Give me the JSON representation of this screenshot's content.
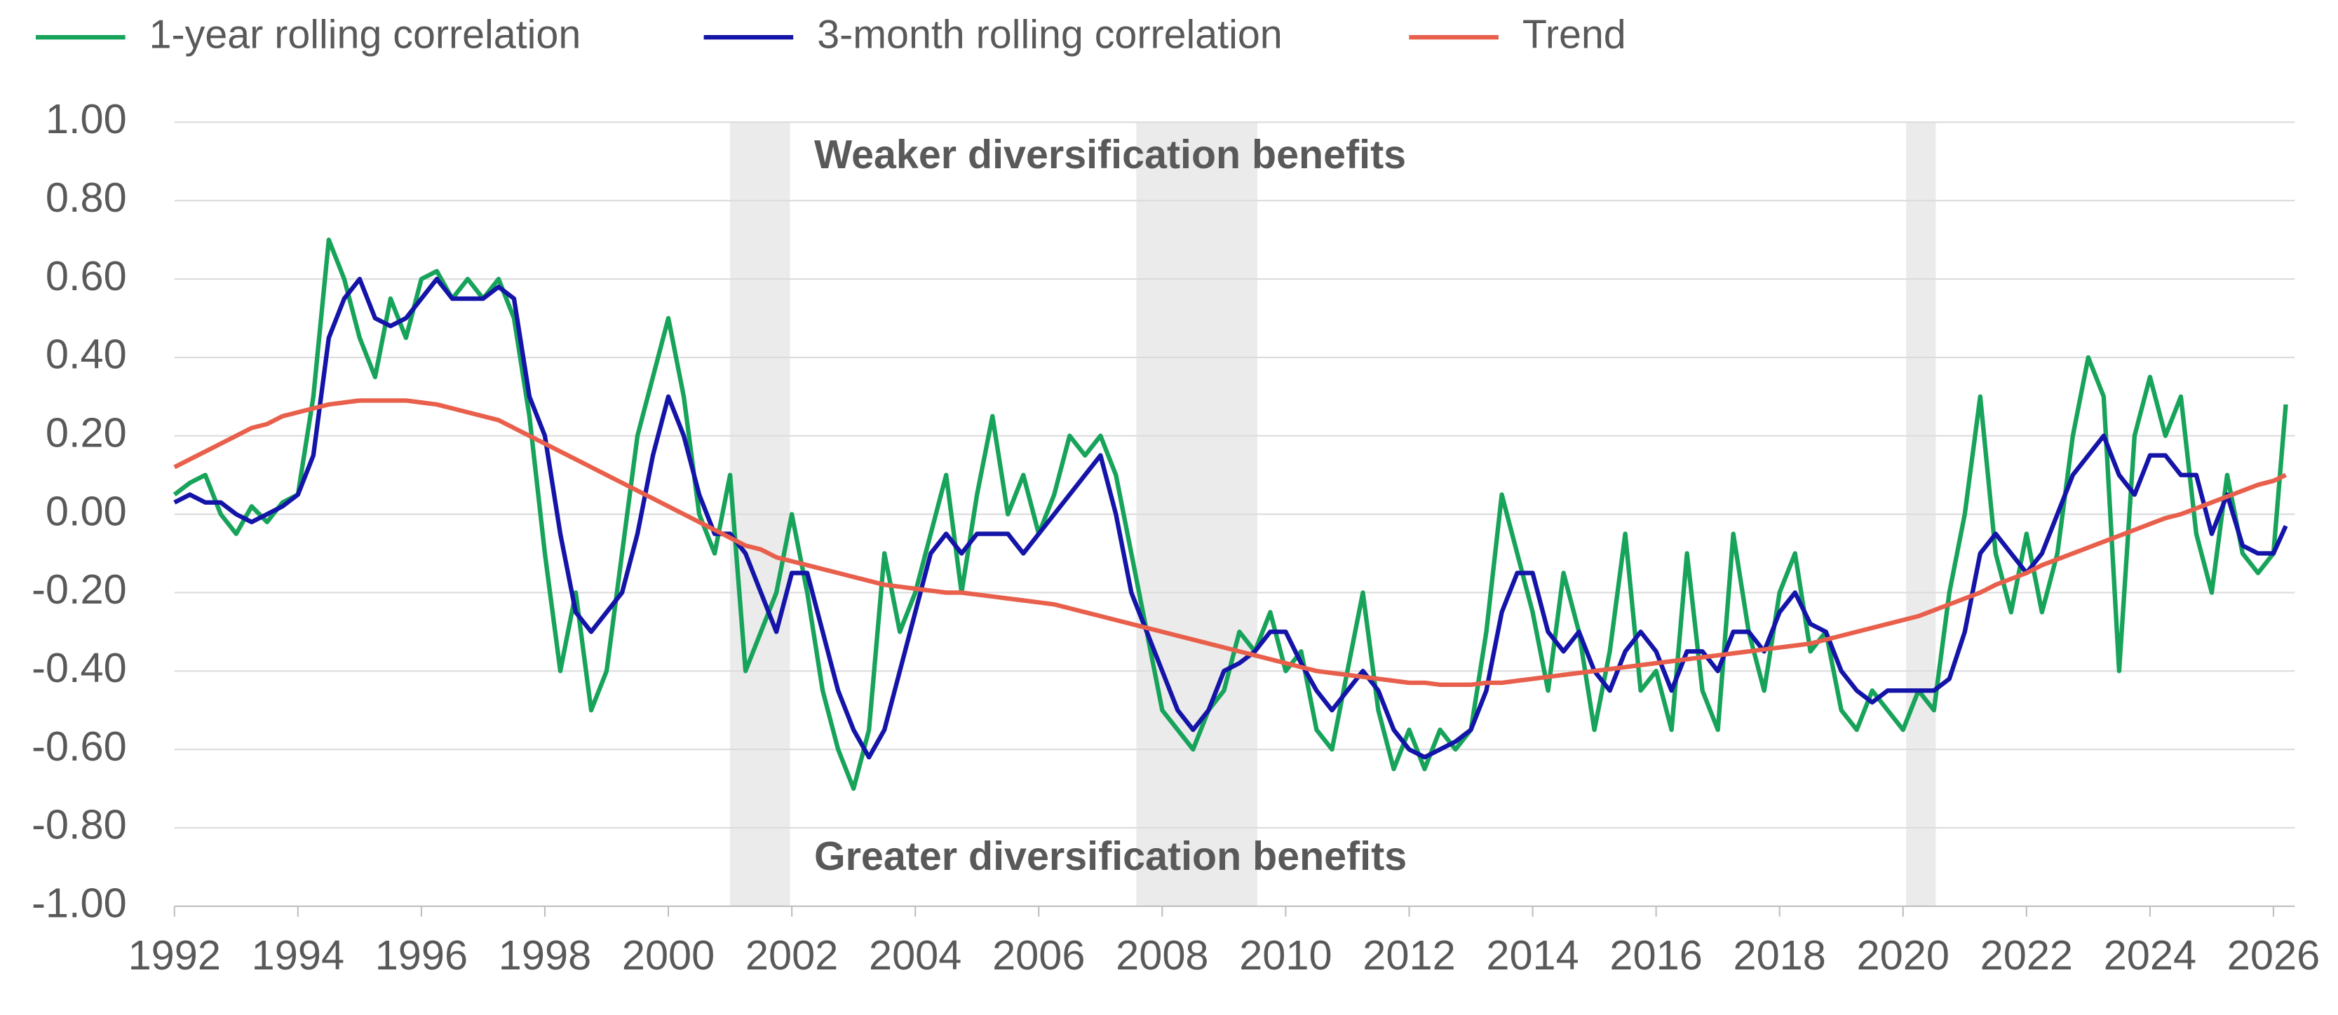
{
  "chart_data": {
    "type": "line",
    "legend": "top-left",
    "grid": true,
    "annotations": [
      {
        "text": "Weaker diversification benefits",
        "y": 0.91
      },
      {
        "text": "Greater diversification benefits",
        "y": -0.88
      }
    ],
    "shaded": [
      [
        2001.0,
        2001.97
      ],
      [
        2007.58,
        2009.54
      ],
      [
        2020.05,
        2020.53
      ]
    ],
    "xlim": [
      1992,
      2026.2
    ],
    "xticks": [
      1992,
      1994,
      1996,
      1998,
      2000,
      2002,
      2004,
      2006,
      2008,
      2010,
      2012,
      2014,
      2016,
      2018,
      2020,
      2022,
      2024,
      2026
    ],
    "ylim": [
      -1,
      1
    ],
    "yticks": [
      {
        "value": -1,
        "label": "-1.00"
      },
      {
        "value": -0.8,
        "label": "-0.80"
      },
      {
        "value": -0.6,
        "label": "-0.60"
      },
      {
        "value": -0.4,
        "label": "-0.40"
      },
      {
        "value": -0.2,
        "label": "-0.20"
      },
      {
        "value": 0,
        "label": "0.00"
      },
      {
        "value": 0.2,
        "label": "0.20"
      },
      {
        "value": 0.4,
        "label": "0.40"
      },
      {
        "value": 0.6,
        "label": "0.60"
      },
      {
        "value": 0.8,
        "label": "0.80"
      },
      {
        "value": 1,
        "label": "1.00"
      }
    ],
    "x": [
      1992,
      1992.25,
      1992.5,
      1992.75,
      1993,
      1993.25,
      1993.5,
      1993.75,
      1994,
      1994.25,
      1994.5,
      1994.75,
      1995,
      1995.25,
      1995.5,
      1995.75,
      1996,
      1996.25,
      1996.5,
      1996.75,
      1997,
      1997.25,
      1997.5,
      1997.75,
      1998,
      1998.25,
      1998.5,
      1998.75,
      1999,
      1999.25,
      1999.5,
      1999.75,
      2000,
      2000.25,
      2000.5,
      2000.75,
      2001,
      2001.25,
      2001.5,
      2001.75,
      2002,
      2002.25,
      2002.5,
      2002.75,
      2003,
      2003.25,
      2003.5,
      2003.75,
      2004,
      2004.25,
      2004.5,
      2004.75,
      2005,
      2005.25,
      2005.5,
      2005.75,
      2006,
      2006.25,
      2006.5,
      2006.75,
      2007,
      2007.25,
      2007.5,
      2007.75,
      2008,
      2008.25,
      2008.5,
      2008.75,
      2009,
      2009.25,
      2009.5,
      2009.75,
      2010,
      2010.25,
      2010.5,
      2010.75,
      2011,
      2011.25,
      2011.5,
      2011.75,
      2012,
      2012.25,
      2012.5,
      2012.75,
      2013,
      2013.25,
      2013.5,
      2013.75,
      2014,
      2014.25,
      2014.5,
      2014.75,
      2015,
      2015.25,
      2015.5,
      2015.75,
      2016,
      2016.25,
      2016.5,
      2016.75,
      2017,
      2017.25,
      2017.5,
      2017.75,
      2018,
      2018.25,
      2018.5,
      2018.75,
      2019,
      2019.25,
      2019.5,
      2019.75,
      2020,
      2020.25,
      2020.5,
      2020.75,
      2021,
      2021.25,
      2021.5,
      2021.75,
      2022,
      2022.25,
      2022.5,
      2022.75,
      2023,
      2023.25,
      2023.5,
      2023.75,
      2024,
      2024.25,
      2024.5,
      2024.75,
      2025,
      2025.25,
      2025.5,
      2025.75,
      2026,
      2026.2
    ],
    "series": [
      {
        "name": "1-year rolling correlation",
        "color": "#17a35a",
        "values": [
          0.05,
          0.08,
          0.1,
          0.0,
          -0.05,
          0.02,
          -0.02,
          0.03,
          0.05,
          0.3,
          0.7,
          0.6,
          0.45,
          0.35,
          0.55,
          0.45,
          0.6,
          0.62,
          0.55,
          0.6,
          0.55,
          0.6,
          0.5,
          0.25,
          -0.1,
          -0.4,
          -0.2,
          -0.5,
          -0.4,
          -0.1,
          0.2,
          0.35,
          0.5,
          0.3,
          0.0,
          -0.1,
          0.1,
          -0.4,
          -0.3,
          -0.2,
          0.0,
          -0.2,
          -0.45,
          -0.6,
          -0.7,
          -0.55,
          -0.1,
          -0.3,
          -0.2,
          -0.05,
          0.1,
          -0.2,
          0.05,
          0.25,
          0.0,
          0.1,
          -0.05,
          0.05,
          0.2,
          0.15,
          0.2,
          0.1,
          -0.1,
          -0.3,
          -0.5,
          -0.55,
          -0.6,
          -0.5,
          -0.45,
          -0.3,
          -0.35,
          -0.25,
          -0.4,
          -0.35,
          -0.55,
          -0.6,
          -0.4,
          -0.2,
          -0.5,
          -0.65,
          -0.55,
          -0.65,
          -0.55,
          -0.6,
          -0.55,
          -0.3,
          0.05,
          -0.1,
          -0.25,
          -0.45,
          -0.15,
          -0.3,
          -0.55,
          -0.35,
          -0.05,
          -0.45,
          -0.4,
          -0.55,
          -0.1,
          -0.45,
          -0.55,
          -0.05,
          -0.3,
          -0.45,
          -0.2,
          -0.1,
          -0.35,
          -0.3,
          -0.5,
          -0.55,
          -0.45,
          -0.5,
          -0.55,
          -0.45,
          -0.5,
          -0.2,
          0.0,
          0.3,
          -0.1,
          -0.25,
          -0.05,
          -0.25,
          -0.1,
          0.2,
          0.4,
          0.3,
          -0.4,
          0.2,
          0.35,
          0.2,
          0.3,
          -0.05,
          -0.2,
          0.1,
          -0.1,
          -0.15,
          -0.1,
          0.28
        ]
      },
      {
        "name": "3-month rolling correlation",
        "color": "#1414a8",
        "values": [
          0.03,
          0.05,
          0.03,
          0.03,
          0.0,
          -0.02,
          0.0,
          0.02,
          0.05,
          0.15,
          0.45,
          0.55,
          0.6,
          0.5,
          0.48,
          0.5,
          0.55,
          0.6,
          0.55,
          0.55,
          0.55,
          0.58,
          0.55,
          0.3,
          0.2,
          -0.05,
          -0.25,
          -0.3,
          -0.25,
          -0.2,
          -0.05,
          0.15,
          0.3,
          0.2,
          0.05,
          -0.05,
          -0.05,
          -0.1,
          -0.2,
          -0.3,
          -0.15,
          -0.15,
          -0.3,
          -0.45,
          -0.55,
          -0.62,
          -0.55,
          -0.4,
          -0.25,
          -0.1,
          -0.05,
          -0.1,
          -0.05,
          -0.05,
          -0.05,
          -0.1,
          -0.05,
          0.0,
          0.05,
          0.1,
          0.15,
          0.0,
          -0.2,
          -0.3,
          -0.4,
          -0.5,
          -0.55,
          -0.5,
          -0.4,
          -0.38,
          -0.35,
          -0.3,
          -0.3,
          -0.38,
          -0.45,
          -0.5,
          -0.45,
          -0.4,
          -0.45,
          -0.55,
          -0.6,
          -0.62,
          -0.6,
          -0.58,
          -0.55,
          -0.45,
          -0.25,
          -0.15,
          -0.15,
          -0.3,
          -0.35,
          -0.3,
          -0.4,
          -0.45,
          -0.35,
          -0.3,
          -0.35,
          -0.45,
          -0.35,
          -0.35,
          -0.4,
          -0.3,
          -0.3,
          -0.35,
          -0.25,
          -0.2,
          -0.28,
          -0.3,
          -0.4,
          -0.45,
          -0.48,
          -0.45,
          -0.45,
          -0.45,
          -0.45,
          -0.42,
          -0.3,
          -0.1,
          -0.05,
          -0.1,
          -0.15,
          -0.1,
          0.0,
          0.1,
          0.15,
          0.2,
          0.1,
          0.05,
          0.15,
          0.15,
          0.1,
          0.1,
          -0.05,
          0.05,
          -0.08,
          -0.1,
          -0.1,
          -0.03
        ]
      },
      {
        "name": "Trend",
        "color": "#e8604c",
        "values": [
          0.12,
          0.14,
          0.16,
          0.18,
          0.2,
          0.22,
          0.23,
          0.25,
          0.26,
          0.27,
          0.28,
          0.285,
          0.29,
          0.29,
          0.29,
          0.29,
          0.285,
          0.28,
          0.27,
          0.26,
          0.25,
          0.24,
          0.22,
          0.2,
          0.18,
          0.16,
          0.14,
          0.12,
          0.1,
          0.08,
          0.06,
          0.04,
          0.02,
          0.0,
          -0.02,
          -0.04,
          -0.06,
          -0.08,
          -0.09,
          -0.11,
          -0.12,
          -0.13,
          -0.14,
          -0.15,
          -0.16,
          -0.17,
          -0.18,
          -0.185,
          -0.19,
          -0.195,
          -0.2,
          -0.2,
          -0.205,
          -0.21,
          -0.215,
          -0.22,
          -0.225,
          -0.23,
          -0.24,
          -0.25,
          -0.26,
          -0.27,
          -0.28,
          -0.29,
          -0.3,
          -0.31,
          -0.32,
          -0.33,
          -0.34,
          -0.35,
          -0.36,
          -0.37,
          -0.38,
          -0.39,
          -0.4,
          -0.405,
          -0.41,
          -0.415,
          -0.42,
          -0.425,
          -0.43,
          -0.43,
          -0.435,
          -0.435,
          -0.435,
          -0.43,
          -0.43,
          -0.425,
          -0.42,
          -0.415,
          -0.41,
          -0.405,
          -0.4,
          -0.395,
          -0.39,
          -0.385,
          -0.38,
          -0.375,
          -0.37,
          -0.365,
          -0.36,
          -0.355,
          -0.35,
          -0.345,
          -0.34,
          -0.335,
          -0.33,
          -0.32,
          -0.31,
          -0.3,
          -0.29,
          -0.28,
          -0.27,
          -0.26,
          -0.245,
          -0.23,
          -0.215,
          -0.2,
          -0.18,
          -0.165,
          -0.15,
          -0.13,
          -0.115,
          -0.1,
          -0.085,
          -0.07,
          -0.055,
          -0.04,
          -0.025,
          -0.01,
          0.0,
          0.015,
          0.03,
          0.045,
          0.06,
          0.075,
          0.085,
          0.1
        ]
      }
    ]
  }
}
